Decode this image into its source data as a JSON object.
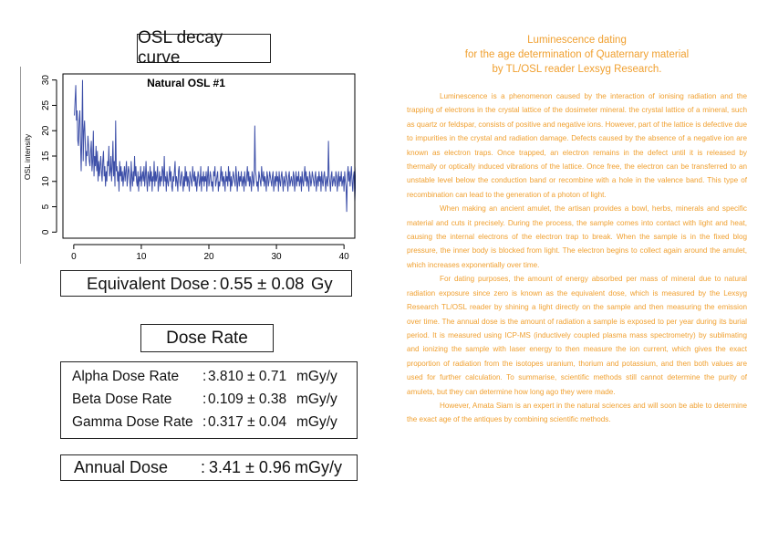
{
  "osl_title": "OSL decay curve",
  "chart_data": {
    "type": "line",
    "title": "Natural OSL #1",
    "xlabel": "",
    "ylabel": "OSL intensity",
    "xlim": [
      0,
      40
    ],
    "ylim": [
      0,
      30
    ],
    "x_ticks": [
      0,
      10,
      20,
      30,
      40
    ],
    "y_ticks": [
      0,
      5,
      10,
      15,
      20,
      25,
      30
    ],
    "grid": false,
    "line_color": "#3d4fa8",
    "series": [
      {
        "x_start": 0.1,
        "x_step": 0.1,
        "values": [
          23,
          26,
          29,
          22,
          24,
          18,
          17,
          22,
          24,
          18,
          12,
          19,
          30,
          14,
          20,
          22,
          18,
          13,
          16,
          15,
          19,
          17,
          14,
          13,
          16,
          18,
          12,
          14,
          20,
          11,
          15,
          13,
          17,
          12,
          16,
          10,
          14,
          11,
          13,
          15,
          12,
          10,
          14,
          16,
          11,
          13,
          9,
          12,
          10,
          14,
          13,
          17,
          11,
          12,
          15,
          10,
          13,
          18,
          11,
          14,
          9,
          22,
          12,
          13,
          10,
          12,
          8,
          14,
          11,
          13,
          10,
          12,
          9,
          11,
          13,
          10,
          12,
          14,
          9,
          11,
          13,
          12,
          10,
          8,
          14,
          11,
          9,
          12,
          10,
          15,
          11,
          13,
          10,
          9,
          12,
          8,
          11,
          10,
          13,
          9,
          11,
          12,
          10,
          13,
          9,
          11,
          14,
          10,
          8,
          12,
          11,
          9,
          13,
          10,
          12,
          8,
          11,
          10,
          14,
          9,
          12,
          10,
          11,
          13,
          8,
          10,
          12,
          9,
          11,
          10,
          13,
          12,
          9,
          15,
          10,
          11,
          8,
          12,
          10,
          9,
          11,
          13,
          10,
          12,
          9,
          8,
          11,
          10,
          12,
          14,
          9,
          11,
          10,
          8,
          12,
          13,
          10,
          9,
          11,
          12,
          10,
          8,
          11,
          9,
          13,
          10,
          12,
          9,
          11,
          10,
          8,
          12,
          11,
          10,
          9,
          13,
          11,
          10,
          12,
          9,
          11,
          8,
          10,
          12,
          11,
          9,
          10,
          13,
          8,
          11,
          10,
          12,
          9,
          11,
          10,
          12,
          8,
          11,
          13,
          9,
          10,
          12,
          11,
          9,
          10,
          8,
          12,
          11,
          13,
          9,
          10,
          11,
          12,
          8,
          10,
          9,
          11,
          13,
          10,
          12,
          9,
          11,
          10,
          8,
          12,
          10,
          11,
          9,
          13,
          10,
          12,
          8,
          11,
          9,
          10,
          12,
          11,
          10,
          9,
          13,
          11,
          8,
          10,
          12,
          9,
          11,
          10,
          12,
          9,
          10,
          11,
          8,
          12,
          10,
          9,
          11,
          13,
          10,
          12,
          9,
          11,
          10,
          8,
          12,
          11,
          9,
          10,
          21,
          12,
          11,
          9,
          10,
          8,
          12,
          11,
          10,
          9,
          13,
          11,
          10,
          12,
          9,
          11,
          10,
          8,
          12,
          11,
          9,
          10,
          12,
          11,
          10,
          9,
          11,
          12,
          8,
          10,
          11,
          9,
          12,
          10,
          11,
          8,
          12,
          10,
          9,
          11,
          12,
          10,
          8,
          11,
          10,
          9,
          12,
          11,
          10,
          8,
          11,
          12,
          9,
          10,
          11,
          10,
          9,
          12,
          11,
          8,
          10,
          12,
          9,
          11,
          10,
          12,
          9,
          10,
          11,
          8,
          12,
          10,
          9,
          11,
          13,
          10,
          12,
          9,
          11,
          10,
          8,
          12,
          11,
          9,
          10,
          12,
          11,
          10,
          9,
          11,
          12,
          8,
          10,
          11,
          9,
          12,
          10,
          11,
          8,
          12,
          10,
          9,
          11,
          12,
          10,
          8,
          11,
          10,
          9,
          18,
          11,
          10,
          8,
          11,
          12,
          9,
          10,
          11,
          10,
          9,
          12,
          11,
          8,
          10,
          12,
          9,
          11,
          10,
          12,
          9,
          10,
          11,
          8,
          12,
          10,
          9,
          4,
          11,
          13,
          10,
          12,
          9,
          11,
          13,
          10,
          8,
          11,
          12,
          6,
          10,
          13,
          11,
          9,
          10
        ]
      }
    ]
  },
  "equivalent_dose": {
    "label": "Equivalent Dose",
    "colon": ":",
    "value": "0.55 ± 0.08",
    "unit": "Gy"
  },
  "dose_rate_title": "Dose Rate",
  "dose_rates": [
    {
      "label": "Alpha Dose Rate",
      "colon": ":",
      "value": "3.810 ± 0.71",
      "unit": "mGy/y"
    },
    {
      "label": "Beta Dose Rate",
      "colon": ":",
      "value": "0.109 ± 0.38",
      "unit": "mGy/y"
    },
    {
      "label": "Gamma Dose Rate",
      "colon": ":",
      "value": "0.317 ± 0.04",
      "unit": "mGy/y"
    }
  ],
  "annual_dose": {
    "label": "Annual Dose",
    "colon": ":",
    "value": "3.41 ± 0.96",
    "unit": "mGy/y"
  },
  "article": {
    "title_lines": [
      "Luminescence dating",
      "for the age determination of Quaternary material",
      "by TL/OSL reader Lexsyg Research."
    ],
    "accent_color": "#f0a030",
    "paragraphs": [
      "Luminescence is a phenomenon caused by the interaction of ionising radiation and the trapping of electrons in the crystal lattice of the dosimeter mineral. the crystal lattice of a mineral, such as quartz or feldspar, consists of positive and negative ions. However, part of the lattice is defective due to impurities in the crystal and radiation damage. Defects caused by the absence of a negative ion are known as electron traps. Once trapped, an electron remains in the defect until it is released by thermally or optically induced vibrations of the lattice. Once free, the electron can be transferred to an unstable level below the conduction band or recombine with a hole in the valence band. This type of recombination can lead to the generation of a photon of light.",
      "When making an ancient amulet, the artisan provides a bowl, herbs, minerals and specific material and cuts it precisely. During the process, the sample comes into contact with light and heat, causing the internal electrons of the electron trap to break. When the sample is in the fixed blog pressure, the inner body is blocked from light. The electron begins to collect again around the amulet, which increases exponentially over time.",
      "For dating purposes, the amount of energy absorbed per mass of mineral due to natural radiation exposure since zero is known as the equivalent dose, which is measured by the Lexsyg Research TL/OSL reader by shining a light directly on the sample and then measuring the emission over time. The annual dose is the amount of radiation a sample is exposed to per year during its burial period. It is measured using ICP-MS (inductively coupled plasma mass spectrometry) by sublimating and ionizing the sample with laser energy to then measure the ion current, which gives the exact proportion of radiation from the isotopes uranium, thorium and potassium, and then both values are used for further calculation. To summarise, scientific methods still cannot determine the purity of amulets, but they can determine how long ago they were made.",
      "However, Amata Siam is an expert in the natural sciences and will soon be able to determine the exact age of the antiques by combining scientific methods."
    ]
  }
}
